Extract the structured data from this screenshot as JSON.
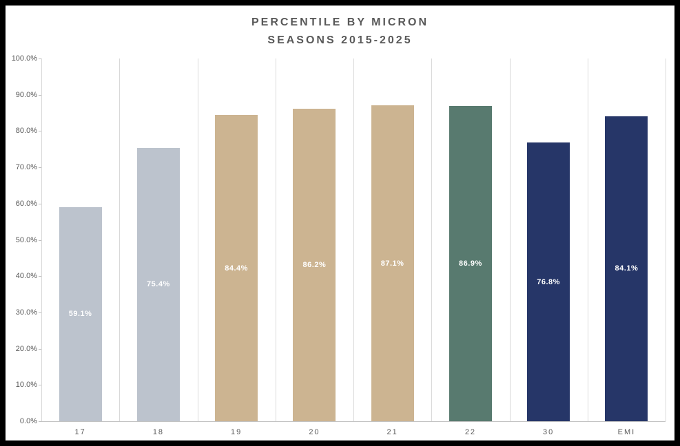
{
  "title": {
    "line1": "PERCENTILE BY MICRON",
    "line2": "SEASONS 2015-2025"
  },
  "chart_data": {
    "type": "bar",
    "title": "PERCENTILE BY MICRON SEASONS 2015-2025",
    "categories": [
      "17",
      "18",
      "19",
      "20",
      "21",
      "22",
      "30",
      "EMI"
    ],
    "values": [
      59.1,
      75.4,
      84.4,
      86.2,
      87.1,
      86.9,
      76.8,
      84.1
    ],
    "value_labels": [
      "59.1%",
      "75.4%",
      "84.4%",
      "86.2%",
      "87.1%",
      "86.9%",
      "76.8%",
      "84.1%"
    ],
    "bar_colors": [
      "#bcc3cd",
      "#bcc3cd",
      "#ccb491",
      "#ccb491",
      "#ccb491",
      "#587a6f",
      "#263668",
      "#263668"
    ],
    "xlabel": "",
    "ylabel": "",
    "ylim": [
      0,
      100
    ],
    "ytick_labels": [
      "0.0%",
      "10.0%",
      "20.0%",
      "30.0%",
      "40.0%",
      "50.0%",
      "60.0%",
      "70.0%",
      "80.0%",
      "90.0%",
      "100.0%"
    ],
    "grid": "vertical-only",
    "legend": "none"
  },
  "colors": {
    "background": "#ffffff",
    "frame": "#000000",
    "gridline": "#d9d9d9",
    "axis_line": "#c3c3c3",
    "axis_text": "#595959",
    "title_text": "#595959",
    "bar_label_text": "#ffffff"
  }
}
